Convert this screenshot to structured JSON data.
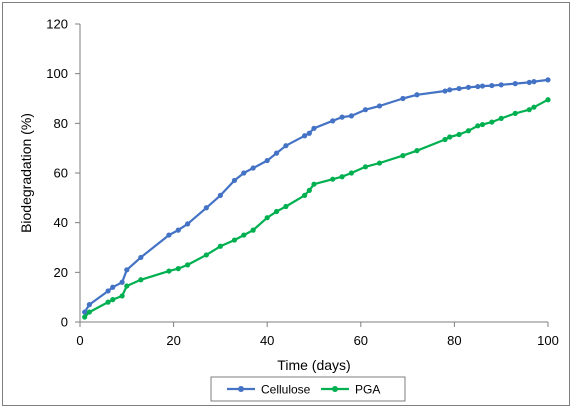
{
  "chart_data": {
    "type": "line",
    "title": "",
    "xlabel": "Time (days)",
    "ylabel": "Biodegradation (%)",
    "xlim": [
      0,
      100
    ],
    "ylim": [
      0,
      120
    ],
    "xticks": [
      "0",
      "20",
      "40",
      "60",
      "80",
      "100"
    ],
    "yticks": [
      "0",
      "20",
      "40",
      "60",
      "80",
      "100",
      "120"
    ],
    "grid": false,
    "legend": "bottom",
    "series": [
      {
        "name": "Cellulose",
        "color": "#4472c4",
        "x": [
          1,
          2,
          6,
          7,
          9,
          10,
          13,
          19,
          21,
          23,
          27,
          30,
          33,
          35,
          37,
          40,
          42,
          44,
          48,
          49,
          50,
          54,
          56,
          58,
          61,
          64,
          69,
          72,
          78,
          79,
          81,
          83,
          85,
          86,
          88,
          90,
          93,
          96,
          97,
          100
        ],
        "y": [
          4,
          7,
          12.5,
          14,
          16,
          21,
          26,
          35,
          37,
          39.5,
          46,
          51,
          57,
          60,
          62,
          65,
          68,
          71,
          75,
          76,
          78,
          81,
          82.5,
          83,
          85.5,
          87,
          90,
          91.5,
          93,
          93.5,
          94,
          94.5,
          94.8,
          95,
          95.2,
          95.5,
          96,
          96.5,
          96.8,
          97.5
        ]
      },
      {
        "name": "PGA",
        "color": "#00b050",
        "x": [
          1,
          2,
          6,
          7,
          9,
          10,
          13,
          19,
          21,
          23,
          27,
          30,
          33,
          35,
          37,
          40,
          42,
          44,
          48,
          49,
          50,
          54,
          56,
          58,
          61,
          64,
          69,
          72,
          78,
          79,
          81,
          83,
          85,
          86,
          88,
          90,
          93,
          96,
          97,
          100
        ],
        "y": [
          2,
          4,
          8,
          9,
          10.5,
          14.5,
          17,
          20.5,
          21.5,
          23,
          27,
          30.5,
          33,
          35,
          37,
          42,
          44.5,
          46.5,
          51,
          53,
          55.5,
          57.5,
          58.5,
          60,
          62.5,
          64,
          67,
          69,
          73.5,
          74.5,
          75.5,
          77,
          79,
          79.5,
          80.5,
          82,
          84,
          85.5,
          86.5,
          89.5
        ]
      }
    ]
  }
}
